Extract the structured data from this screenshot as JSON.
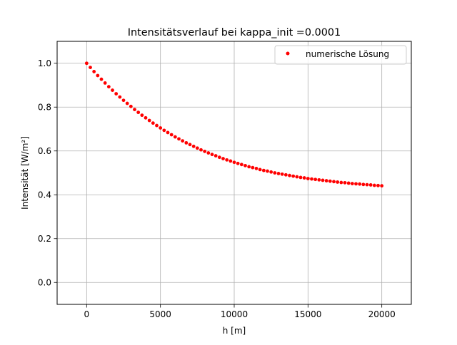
{
  "chart_data": {
    "type": "scatter",
    "title": "Intensitätsverlauf bei kappa_init =0.0001",
    "xlabel": "h [m]",
    "ylabel": "Intensität [W/m²]",
    "xlim": [
      -2000,
      22000
    ],
    "ylim": [
      -0.1,
      1.1
    ],
    "x_ticks": [
      0,
      5000,
      10000,
      15000,
      20000
    ],
    "y_ticks": [
      0.0,
      0.2,
      0.4,
      0.6,
      0.8,
      1.0
    ],
    "x_tick_labels": [
      "0",
      "5000",
      "10000",
      "15000",
      "20000"
    ],
    "y_tick_labels": [
      "0.0",
      "0.2",
      "0.4",
      "0.6",
      "0.8",
      "1.0"
    ],
    "grid": true,
    "legend_position": "top-right",
    "series": [
      {
        "name": "numerische Lösung",
        "color": "#ff0000",
        "marker": "point",
        "x": [
          0,
          250,
          500,
          750,
          1000,
          1250,
          1500,
          1750,
          2000,
          2250,
          2500,
          2750,
          3000,
          3250,
          3500,
          3750,
          4000,
          4250,
          4500,
          4750,
          5000,
          5250,
          5500,
          5750,
          6000,
          6250,
          6500,
          6750,
          7000,
          7250,
          7500,
          7750,
          8000,
          8250,
          8500,
          8750,
          9000,
          9250,
          9500,
          9750,
          10000,
          10250,
          10500,
          10750,
          11000,
          11250,
          11500,
          11750,
          12000,
          12250,
          12500,
          12750,
          13000,
          13250,
          13500,
          13750,
          14000,
          14250,
          14500,
          14750,
          15000,
          15250,
          15500,
          15750,
          16000,
          16250,
          16500,
          16750,
          17000,
          17250,
          17500,
          17750,
          18000,
          18250,
          18500,
          18750,
          19000,
          19250,
          19500,
          19750,
          20000
        ],
        "y": [
          1.0,
          0.981,
          0.962,
          0.944,
          0.927,
          0.91,
          0.893,
          0.877,
          0.861,
          0.846,
          0.831,
          0.817,
          0.803,
          0.789,
          0.776,
          0.763,
          0.751,
          0.739,
          0.727,
          0.716,
          0.705,
          0.694,
          0.684,
          0.674,
          0.664,
          0.655,
          0.646,
          0.637,
          0.629,
          0.621,
          0.613,
          0.605,
          0.598,
          0.591,
          0.584,
          0.578,
          0.571,
          0.565,
          0.559,
          0.554,
          0.548,
          0.543,
          0.538,
          0.533,
          0.528,
          0.524,
          0.52,
          0.515,
          0.511,
          0.508,
          0.504,
          0.5,
          0.497,
          0.494,
          0.491,
          0.488,
          0.485,
          0.482,
          0.479,
          0.477,
          0.474,
          0.472,
          0.47,
          0.468,
          0.466,
          0.464,
          0.462,
          0.46,
          0.458,
          0.456,
          0.455,
          0.453,
          0.451,
          0.45,
          0.449,
          0.447,
          0.446,
          0.445,
          0.443,
          0.442,
          0.441
        ]
      }
    ]
  }
}
